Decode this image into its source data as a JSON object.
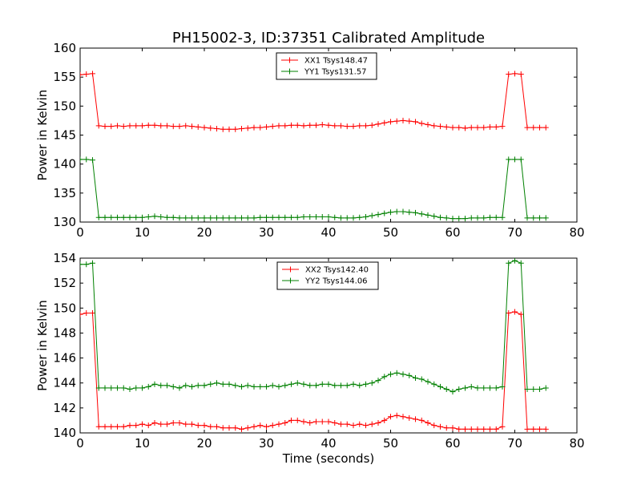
{
  "figure": {
    "title": "PH15002-3, ID:37351 Calibrated Amplitude",
    "xlabel": "Time (seconds)"
  },
  "colors": {
    "xx": "#ff0000",
    "yy": "#008000",
    "axes": "#000000",
    "background": "#ffffff"
  },
  "chart_data": [
    {
      "type": "line",
      "ylabel": "Power in Kelvin",
      "xlim": [
        0,
        80
      ],
      "ylim": [
        130,
        160
      ],
      "xticks": [
        "0",
        "10",
        "20",
        "30",
        "40",
        "50",
        "60",
        "70",
        "80"
      ],
      "yticks": [
        "130",
        "135",
        "140",
        "145",
        "150",
        "155",
        "160"
      ],
      "grid": false,
      "legend_position": "top-center",
      "marker": "+",
      "x": [
        0,
        1,
        2,
        3,
        4,
        5,
        6,
        7,
        8,
        9,
        10,
        11,
        12,
        13,
        14,
        15,
        16,
        17,
        18,
        19,
        20,
        21,
        22,
        23,
        24,
        25,
        26,
        27,
        28,
        29,
        30,
        31,
        32,
        33,
        34,
        35,
        36,
        37,
        38,
        39,
        40,
        41,
        42,
        43,
        44,
        45,
        46,
        47,
        48,
        49,
        50,
        51,
        52,
        53,
        54,
        55,
        56,
        57,
        58,
        59,
        60,
        61,
        62,
        63,
        64,
        65,
        66,
        67,
        68,
        69,
        70,
        71,
        72,
        73,
        74,
        75
      ],
      "series": [
        {
          "name": "XX1 Tsys148.47",
          "color": "#ff0000",
          "values": [
            155.4,
            155.5,
            155.6,
            146.6,
            146.5,
            146.5,
            146.6,
            146.5,
            146.6,
            146.6,
            146.6,
            146.7,
            146.7,
            146.6,
            146.6,
            146.5,
            146.5,
            146.6,
            146.5,
            146.4,
            146.3,
            146.2,
            146.1,
            146.0,
            146.0,
            146.0,
            146.1,
            146.2,
            146.3,
            146.3,
            146.4,
            146.5,
            146.6,
            146.6,
            146.7,
            146.7,
            146.6,
            146.7,
            146.7,
            146.8,
            146.7,
            146.6,
            146.6,
            146.5,
            146.5,
            146.6,
            146.6,
            146.7,
            146.9,
            147.1,
            147.3,
            147.4,
            147.5,
            147.4,
            147.3,
            147.0,
            146.8,
            146.6,
            146.5,
            146.4,
            146.3,
            146.3,
            146.2,
            146.3,
            146.3,
            146.3,
            146.4,
            146.4,
            146.5,
            155.5,
            155.6,
            155.5,
            146.3,
            146.3,
            146.3,
            146.3
          ]
        },
        {
          "name": "YY1 Tsys131.57",
          "color": "#008000",
          "values": [
            140.8,
            140.8,
            140.7,
            130.8,
            130.8,
            130.8,
            130.8,
            130.8,
            130.8,
            130.8,
            130.8,
            130.9,
            131.0,
            130.9,
            130.8,
            130.8,
            130.7,
            130.7,
            130.7,
            130.7,
            130.7,
            130.7,
            130.7,
            130.7,
            130.7,
            130.7,
            130.7,
            130.7,
            130.7,
            130.8,
            130.8,
            130.8,
            130.8,
            130.8,
            130.8,
            130.8,
            130.9,
            130.9,
            130.9,
            130.9,
            130.9,
            130.8,
            130.7,
            130.7,
            130.7,
            130.8,
            130.9,
            131.1,
            131.3,
            131.5,
            131.7,
            131.8,
            131.8,
            131.7,
            131.6,
            131.4,
            131.2,
            131.0,
            130.8,
            130.7,
            130.6,
            130.6,
            130.6,
            130.7,
            130.7,
            130.7,
            130.8,
            130.8,
            130.8,
            140.8,
            140.8,
            140.8,
            130.7,
            130.7,
            130.7,
            130.7
          ]
        }
      ]
    },
    {
      "type": "line",
      "ylabel": "Power in Kelvin",
      "xlim": [
        0,
        80
      ],
      "ylim": [
        140,
        154
      ],
      "xticks": [
        "0",
        "10",
        "20",
        "30",
        "40",
        "50",
        "60",
        "70",
        "80"
      ],
      "yticks": [
        "140",
        "142",
        "144",
        "146",
        "148",
        "150",
        "152",
        "154"
      ],
      "grid": false,
      "legend_position": "top-center",
      "marker": "+",
      "x": [
        0,
        1,
        2,
        3,
        4,
        5,
        6,
        7,
        8,
        9,
        10,
        11,
        12,
        13,
        14,
        15,
        16,
        17,
        18,
        19,
        20,
        21,
        22,
        23,
        24,
        25,
        26,
        27,
        28,
        29,
        30,
        31,
        32,
        33,
        34,
        35,
        36,
        37,
        38,
        39,
        40,
        41,
        42,
        43,
        44,
        45,
        46,
        47,
        48,
        49,
        50,
        51,
        52,
        53,
        54,
        55,
        56,
        57,
        58,
        59,
        60,
        61,
        62,
        63,
        64,
        65,
        66,
        67,
        68,
        69,
        70,
        71,
        72,
        73,
        74,
        75
      ],
      "series": [
        {
          "name": "XX2 Tsys142.40",
          "color": "#ff0000",
          "values": [
            149.5,
            149.6,
            149.6,
            140.5,
            140.5,
            140.5,
            140.5,
            140.5,
            140.6,
            140.6,
            140.7,
            140.6,
            140.8,
            140.7,
            140.7,
            140.8,
            140.8,
            140.7,
            140.7,
            140.6,
            140.6,
            140.5,
            140.5,
            140.4,
            140.4,
            140.4,
            140.3,
            140.4,
            140.5,
            140.6,
            140.5,
            140.6,
            140.7,
            140.8,
            141.0,
            141.0,
            140.9,
            140.8,
            140.9,
            140.9,
            140.9,
            140.8,
            140.7,
            140.7,
            140.6,
            140.7,
            140.6,
            140.7,
            140.8,
            141.0,
            141.3,
            141.4,
            141.3,
            141.2,
            141.1,
            141.0,
            140.8,
            140.6,
            140.5,
            140.4,
            140.4,
            140.3,
            140.3,
            140.3,
            140.3,
            140.3,
            140.3,
            140.3,
            140.5,
            149.6,
            149.7,
            149.5,
            140.3,
            140.3,
            140.3,
            140.3
          ]
        },
        {
          "name": "YY2 Tsys144.06",
          "color": "#008000",
          "values": [
            153.5,
            153.5,
            153.6,
            143.6,
            143.6,
            143.6,
            143.6,
            143.6,
            143.5,
            143.6,
            143.6,
            143.7,
            143.9,
            143.8,
            143.8,
            143.7,
            143.6,
            143.8,
            143.7,
            143.8,
            143.8,
            143.9,
            144.0,
            143.9,
            143.9,
            143.8,
            143.7,
            143.8,
            143.7,
            143.7,
            143.7,
            143.8,
            143.7,
            143.8,
            143.9,
            144.0,
            143.9,
            143.8,
            143.8,
            143.9,
            143.9,
            143.8,
            143.8,
            143.8,
            143.9,
            143.8,
            143.9,
            144.0,
            144.2,
            144.5,
            144.7,
            144.8,
            144.7,
            144.6,
            144.4,
            144.3,
            144.1,
            143.9,
            143.7,
            143.5,
            143.3,
            143.5,
            143.6,
            143.7,
            143.6,
            143.6,
            143.6,
            143.6,
            143.7,
            153.6,
            153.8,
            153.6,
            143.5,
            143.5,
            143.5,
            143.6
          ]
        }
      ]
    }
  ]
}
